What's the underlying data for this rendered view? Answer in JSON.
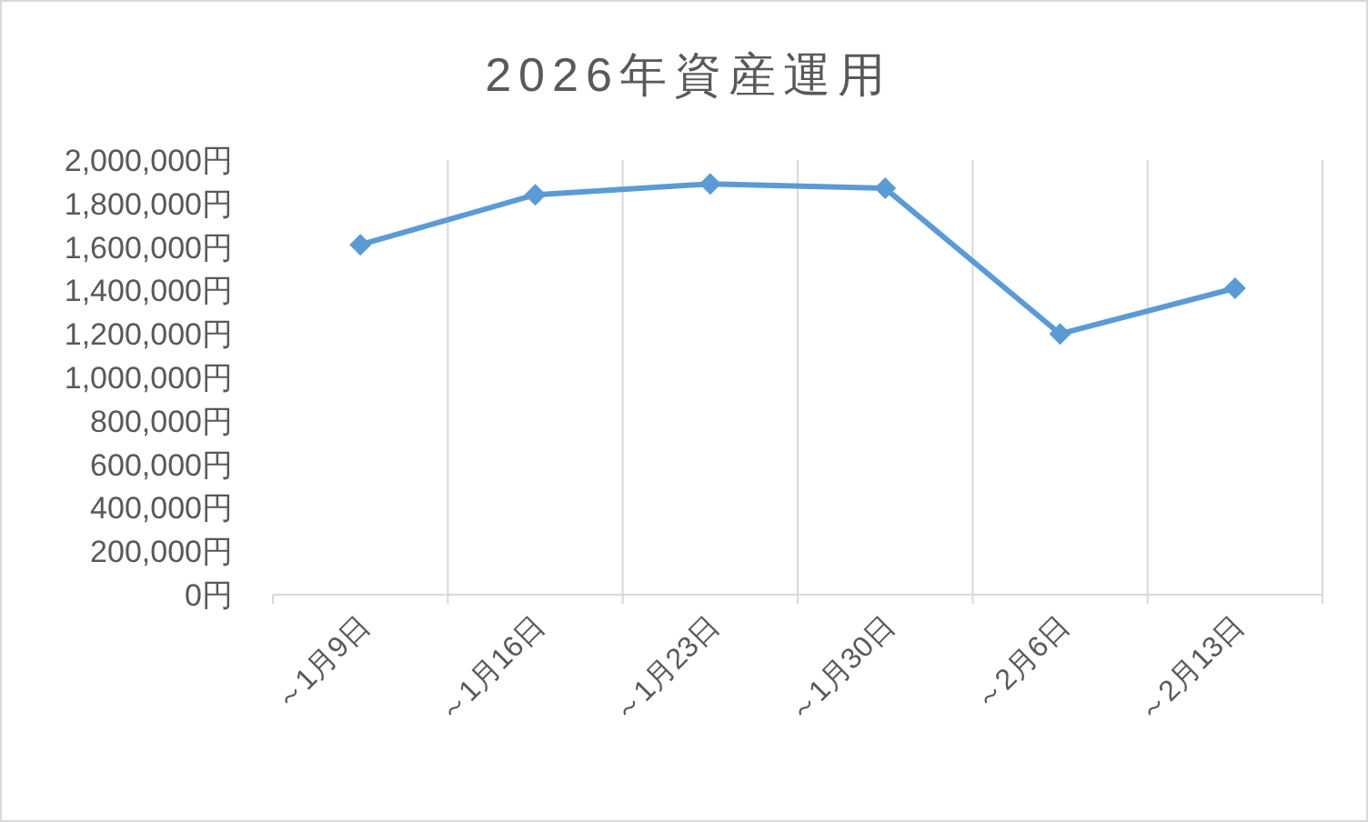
{
  "chart_data": {
    "type": "line",
    "title": "2026年資産運用",
    "categories": [
      "～1月9日",
      "～1月16日",
      "～1月23日",
      "～1月30日",
      "～2月6日",
      "～2月13日"
    ],
    "series": [
      {
        "color": "#5b9bd5",
        "values": [
          1610000,
          1840000,
          1890000,
          1870000,
          1200000,
          1410000
        ]
      }
    ],
    "ylim": [
      0,
      2000000
    ],
    "yticks": [
      {
        "value": 0,
        "label": "0円"
      },
      {
        "value": 200000,
        "label": "200,000円"
      },
      {
        "value": 400000,
        "label": "400,000円"
      },
      {
        "value": 600000,
        "label": "600,000円"
      },
      {
        "value": 800000,
        "label": "800,000円"
      },
      {
        "value": 1000000,
        "label": "1,000,000円"
      },
      {
        "value": 1200000,
        "label": "1,200,000円"
      },
      {
        "value": 1400000,
        "label": "1,400,000円"
      },
      {
        "value": 1600000,
        "label": "1,600,000円"
      },
      {
        "value": 1800000,
        "label": "1,800,000円"
      },
      {
        "value": 2000000,
        "label": "2,000,000円"
      }
    ],
    "grid": "x",
    "marker": "diamond",
    "line_style": "solid"
  }
}
